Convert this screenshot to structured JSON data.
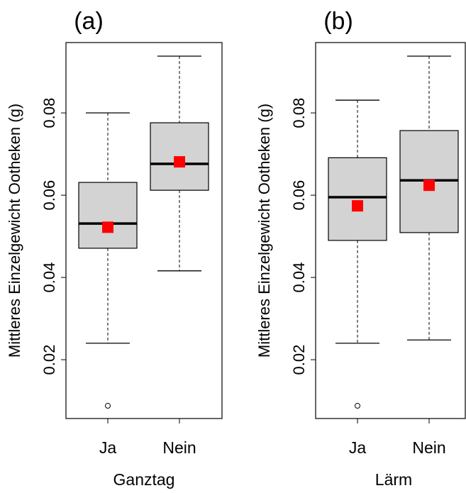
{
  "chart_data": [
    {
      "type": "boxplot",
      "title": "(a)",
      "y_label": "Mittleres Einzelgewicht  Ootheken (g)",
      "x_label": "Ganztag",
      "categories": [
        "Ja",
        "Nein"
      ],
      "box_color": "#d3d3d3",
      "mean_color": "#ff0000",
      "boxes": [
        {
          "whisker_low": 0.024,
          "q1": 0.0471,
          "median": 0.0531,
          "q3": 0.0631,
          "whisker_high": 0.08,
          "mean": 0.0522,
          "outliers": [
            0.0088
          ]
        },
        {
          "whisker_low": 0.0416,
          "q1": 0.0612,
          "median": 0.0676,
          "q3": 0.0776,
          "whisker_high": 0.0938,
          "mean": 0.0681,
          "outliers": []
        }
      ],
      "ylim": [
        0.0057,
        0.0971
      ],
      "yticks": [
        0.02,
        0.04,
        0.06,
        0.08
      ]
    },
    {
      "type": "boxplot",
      "title": "(b)",
      "y_label": "Mittleres Einzelgewicht  Ootheken (g)",
      "x_label": "Lärm",
      "categories": [
        "Ja",
        "Nein"
      ],
      "box_color": "#d3d3d3",
      "mean_color": "#ff0000",
      "boxes": [
        {
          "whisker_low": 0.024,
          "q1": 0.049,
          "median": 0.0595,
          "q3": 0.0691,
          "whisker_high": 0.0831,
          "mean": 0.0574,
          "outliers": [
            0.0088
          ]
        },
        {
          "whisker_low": 0.0248,
          "q1": 0.0509,
          "median": 0.0636,
          "q3": 0.0757,
          "whisker_high": 0.0938,
          "mean": 0.0624,
          "outliers": []
        }
      ],
      "ylim": [
        0.0057,
        0.0971
      ],
      "yticks": [
        0.02,
        0.04,
        0.06,
        0.08
      ]
    }
  ]
}
